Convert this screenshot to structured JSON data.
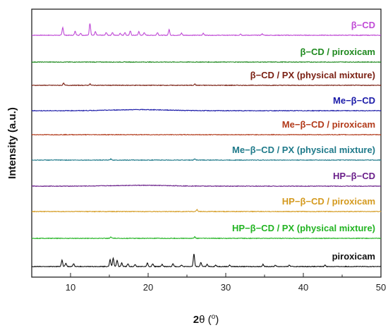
{
  "chart_data": {
    "type": "line",
    "xlabel_main": "2",
    "xlabel_symbol": "θ",
    "xlabel_unit": "(",
    "xlabel_unit_sup": "o",
    "xlabel_unit_close": ")",
    "ylabel": "Intensity (a.u.)",
    "xlim": [
      5,
      50
    ],
    "x_ticks": [
      10,
      20,
      30,
      40,
      50
    ],
    "grid": false,
    "y_ticks_shown": false,
    "series": [
      {
        "name": "β−CD",
        "color": "#c04bd6",
        "peaks": [
          [
            9.0,
            11
          ],
          [
            10.6,
            6
          ],
          [
            11.3,
            3
          ],
          [
            12.5,
            17
          ],
          [
            13.2,
            5
          ],
          [
            14.6,
            4
          ],
          [
            15.4,
            4
          ],
          [
            16.4,
            3
          ],
          [
            17.0,
            4
          ],
          [
            17.7,
            6
          ],
          [
            18.8,
            5
          ],
          [
            19.5,
            4
          ],
          [
            21.2,
            4
          ],
          [
            22.7,
            8
          ],
          [
            24.3,
            3
          ],
          [
            27.1,
            3
          ],
          [
            31.9,
            2
          ],
          [
            34.7,
            2
          ]
        ]
      },
      {
        "name": "β−CD / piroxicam",
        "color": "#1f8a1f",
        "peaks": []
      },
      {
        "name": "β−CD / PX (physical mixture)",
        "color": "#7a1f12",
        "peaks": [
          [
            9.1,
            3
          ],
          [
            12.5,
            2
          ],
          [
            26.0,
            2
          ]
        ]
      },
      {
        "name": "Me−β−CD",
        "color": "#1a1aa8",
        "peaks": [],
        "hump": 1.5
      },
      {
        "name": "Me−β−CD / piroxicam",
        "color": "#b23a1a",
        "peaks": []
      },
      {
        "name": "Me−β−CD / PX (physical mixture)",
        "color": "#1f7a8a",
        "peaks": [
          [
            15.2,
            1.5
          ],
          [
            26.0,
            1.5
          ]
        ]
      },
      {
        "name": "HP−β−CD",
        "color": "#6a1f8a",
        "peaks": [],
        "hump": 1.2
      },
      {
        "name": "HP−β−CD / piroxicam",
        "color": "#d49a1f",
        "peaks": [
          [
            26.3,
            3
          ]
        ]
      },
      {
        "name": "HP−β−CD / PX (physical mixture)",
        "color": "#22b422",
        "peaks": [
          [
            15.2,
            2
          ],
          [
            26.0,
            2
          ]
        ]
      },
      {
        "name": "piroxicam",
        "color": "#111111",
        "peaks": [
          [
            8.9,
            9
          ],
          [
            9.4,
            5
          ],
          [
            10.4,
            4
          ],
          [
            15.1,
            10
          ],
          [
            15.5,
            12
          ],
          [
            16.0,
            9
          ],
          [
            16.6,
            5
          ],
          [
            17.4,
            4
          ],
          [
            18.3,
            3
          ],
          [
            19.9,
            5
          ],
          [
            20.6,
            4
          ],
          [
            21.8,
            3
          ],
          [
            23.2,
            4
          ],
          [
            24.3,
            2
          ],
          [
            25.9,
            18
          ],
          [
            26.8,
            6
          ],
          [
            27.6,
            3
          ],
          [
            28.7,
            2
          ],
          [
            30.5,
            2
          ],
          [
            34.8,
            3
          ],
          [
            36.4,
            2
          ],
          [
            38.2,
            2
          ],
          [
            42.8,
            2
          ]
        ]
      }
    ]
  }
}
